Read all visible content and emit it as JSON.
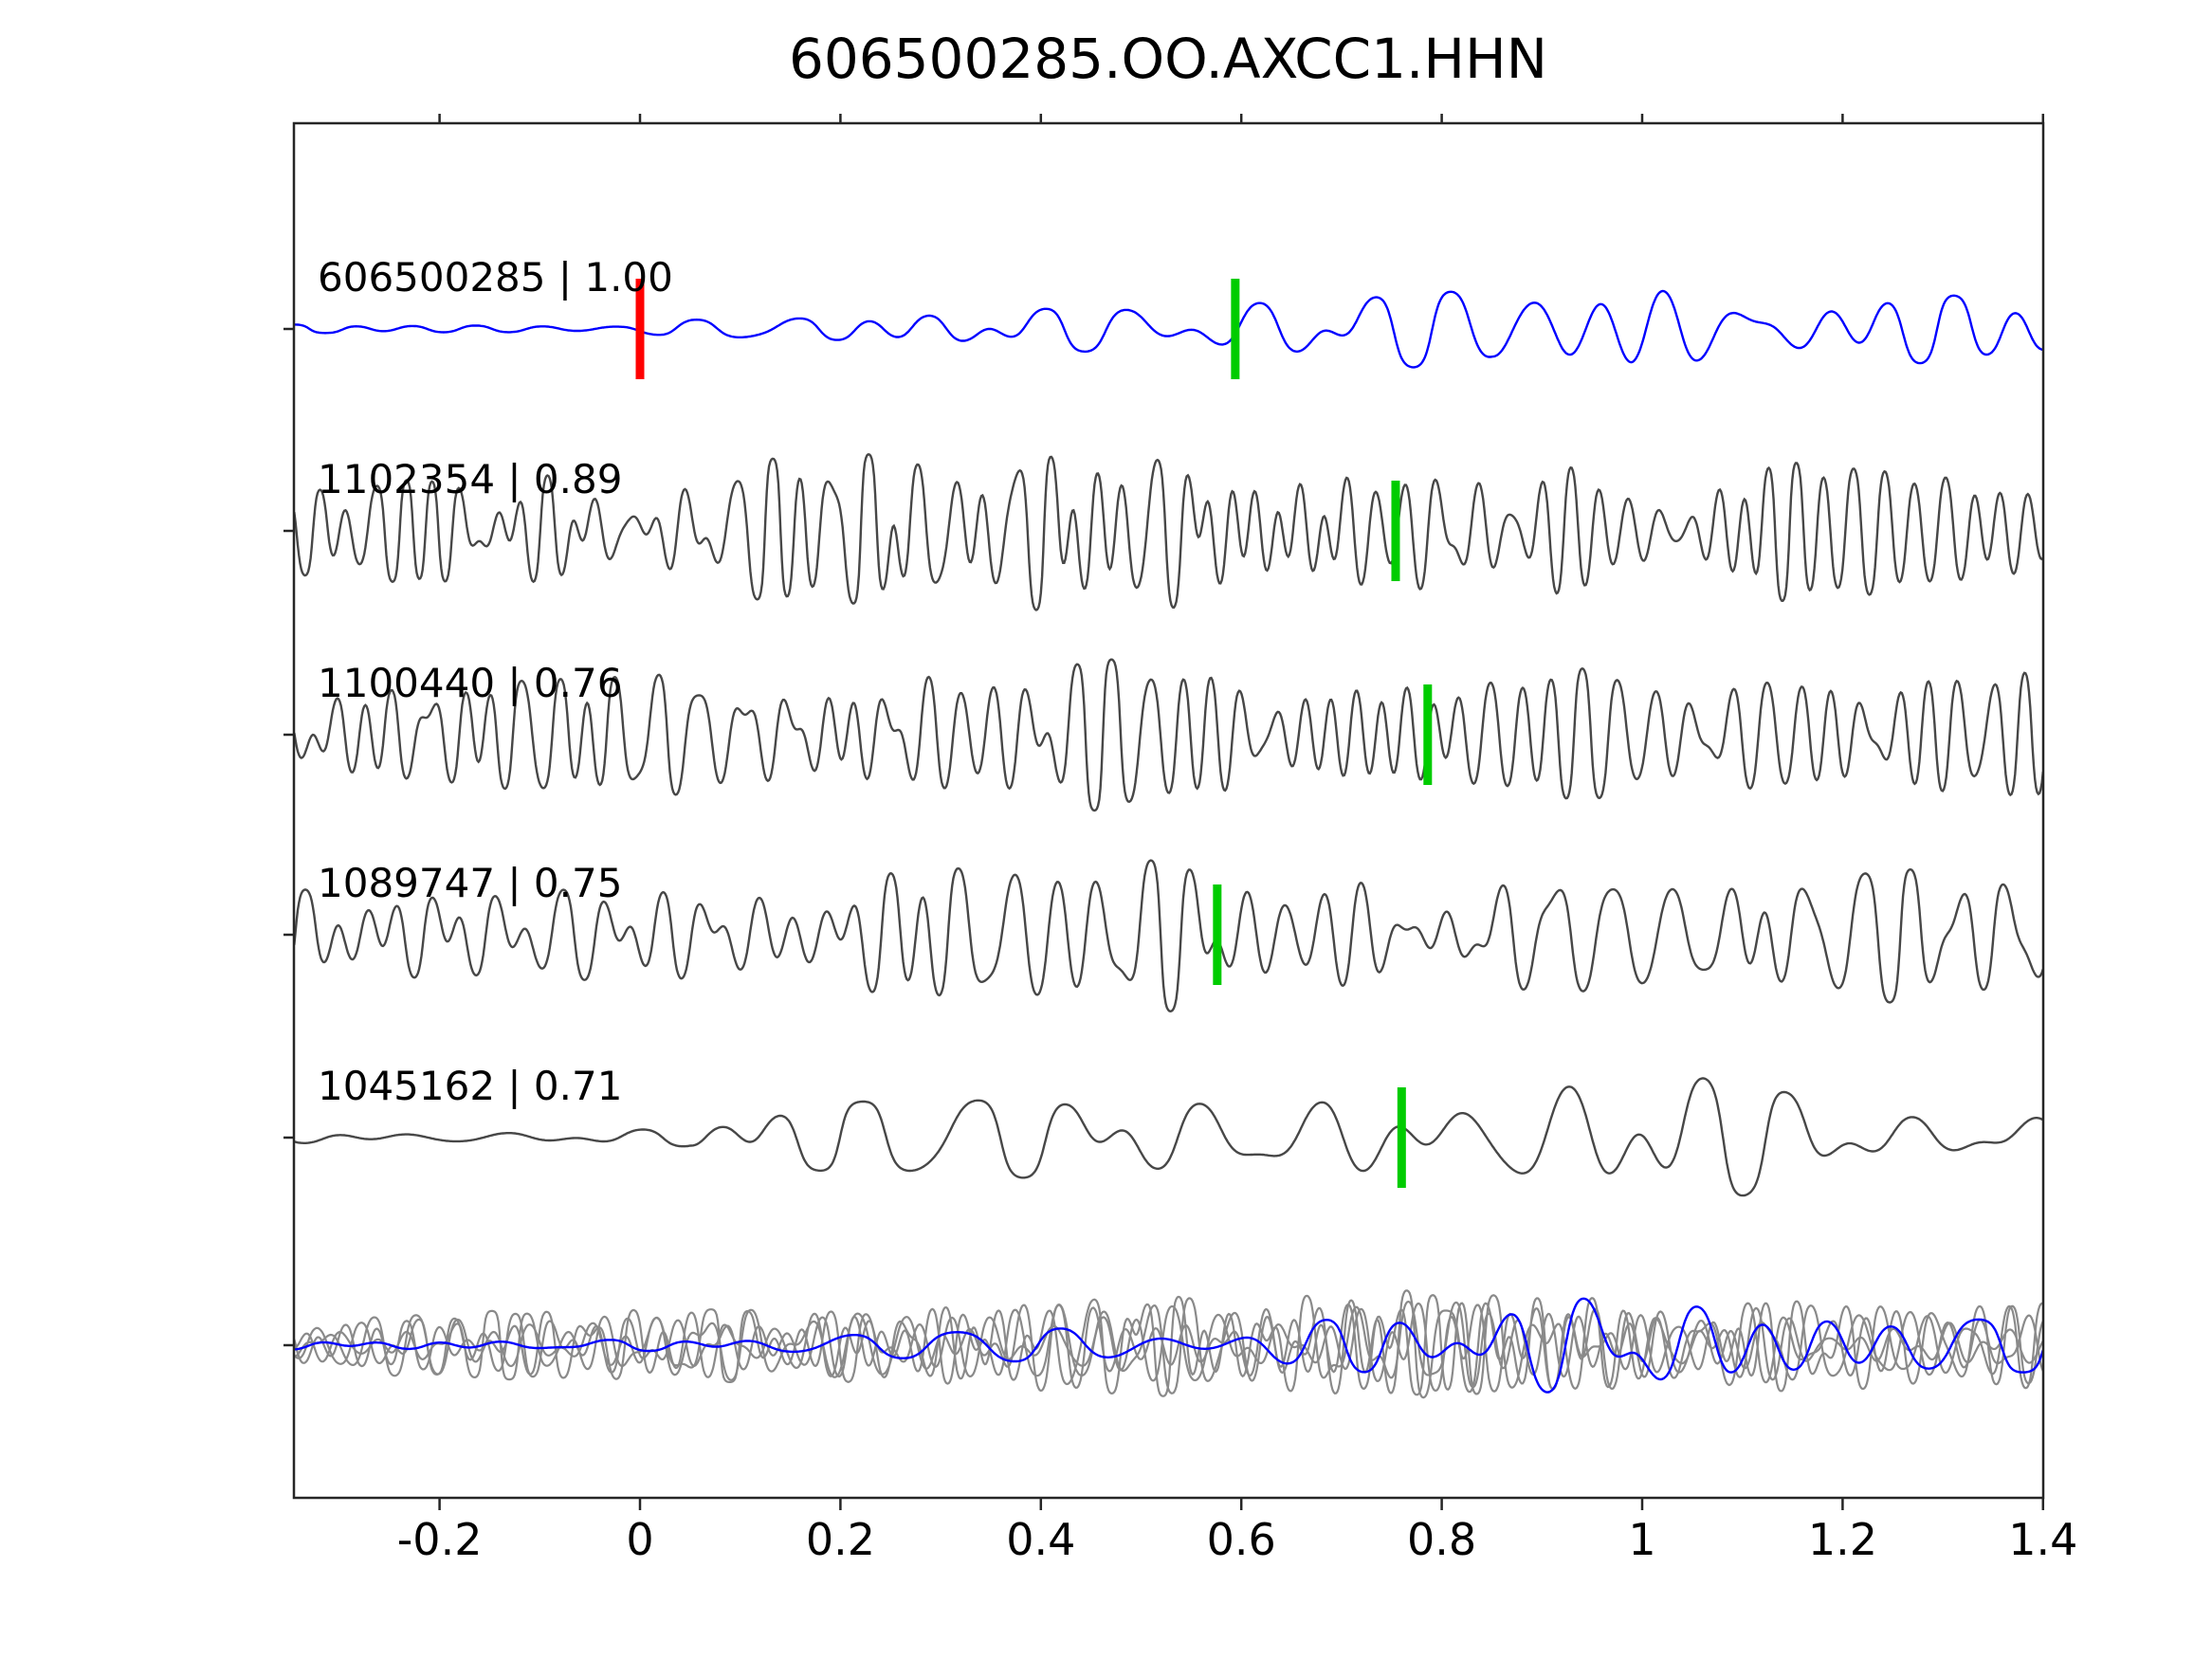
{
  "chart_data": {
    "type": "line",
    "title": "606500285.OO.AXCC1.HHN",
    "xlabel": "",
    "ylabel": "",
    "xlim": [
      -0.345,
      1.4
    ],
    "grid": false,
    "legend": null,
    "x_ticks": [
      -0.2,
      0,
      0.2,
      0.4,
      0.6,
      0.8,
      1,
      1.2,
      1.4
    ],
    "x_tick_labels": [
      "-0.2",
      "0",
      "0.2",
      "0.4",
      "0.6",
      "0.8",
      "1",
      "1.2",
      "1.4"
    ],
    "colors": {
      "template_trace": "#0000ff",
      "detection_trace": "#474747",
      "overlay_trace": "#8a8a8a",
      "pick_marker": "#00cc00",
      "origin_marker": "#ff0000",
      "axis": "#262626",
      "text": "#000000"
    },
    "label_format": "event_id | correlation",
    "traces": [
      {
        "label": "606500285 | 1.00",
        "event_id": "606500285",
        "correlation": "1.00",
        "role": "template",
        "markers": [
          {
            "type": "origin",
            "x": 0.0
          },
          {
            "type": "pick",
            "x": 0.594
          }
        ],
        "render": {
          "seed": 101,
          "freq": [
            8,
            18
          ],
          "env": [
            [
              -0.345,
              5
            ],
            [
              -0.02,
              5
            ],
            [
              0.05,
              12
            ],
            [
              0.2,
              16
            ],
            [
              0.35,
              25
            ],
            [
              0.5,
              30
            ],
            [
              0.62,
              38
            ],
            [
              0.75,
              45
            ],
            [
              0.85,
              50
            ],
            [
              0.92,
              95
            ],
            [
              0.99,
              88
            ],
            [
              1.08,
              50
            ],
            [
              1.25,
              45
            ],
            [
              1.4,
              35
            ]
          ]
        }
      },
      {
        "label": "1102354 | 0.89",
        "event_id": "1102354",
        "correlation": "0.89",
        "role": "detection",
        "markers": [
          {
            "type": "pick",
            "x": 0.754
          }
        ],
        "render": {
          "seed": 202,
          "freq": [
            18,
            45
          ],
          "env": [
            [
              -0.345,
              55
            ],
            [
              -0.1,
              70
            ],
            [
              0.1,
              80
            ],
            [
              0.3,
              90
            ],
            [
              0.5,
              95
            ],
            [
              0.7,
              95
            ],
            [
              0.9,
              90
            ],
            [
              1.1,
              85
            ],
            [
              1.4,
              80
            ]
          ]
        }
      },
      {
        "label": "1100440 | 0.76",
        "event_id": "1100440",
        "correlation": "0.76",
        "role": "detection",
        "markers": [
          {
            "type": "pick",
            "x": 0.786
          }
        ],
        "render": {
          "seed": 303,
          "freq": [
            18,
            42
          ],
          "env": [
            [
              -0.345,
              60
            ],
            [
              0,
              75
            ],
            [
              0.3,
              85
            ],
            [
              0.6,
              85
            ],
            [
              0.9,
              80
            ],
            [
              1.2,
              80
            ],
            [
              1.4,
              85
            ]
          ]
        }
      },
      {
        "label": "1089747 | 0.75",
        "event_id": "1089747",
        "correlation": "0.75",
        "role": "detection",
        "markers": [
          {
            "type": "pick",
            "x": 0.576
          }
        ],
        "render": {
          "seed": 404,
          "freq": [
            14,
            35
          ],
          "env": [
            [
              -0.345,
              55
            ],
            [
              0,
              60
            ],
            [
              0.2,
              75
            ],
            [
              0.4,
              90
            ],
            [
              0.6,
              85
            ],
            [
              0.8,
              80
            ],
            [
              1.0,
              75
            ],
            [
              1.2,
              80
            ],
            [
              1.4,
              70
            ]
          ]
        }
      },
      {
        "label": "1045162 | 0.71",
        "event_id": "1045162",
        "correlation": "0.71",
        "role": "detection",
        "markers": [
          {
            "type": "pick",
            "x": 0.76
          }
        ],
        "render": {
          "seed": 505,
          "freq": [
            8,
            16
          ],
          "env": [
            [
              -0.345,
              10
            ],
            [
              0.05,
              12
            ],
            [
              0.12,
              35
            ],
            [
              0.3,
              45
            ],
            [
              0.5,
              50
            ],
            [
              0.65,
              55
            ],
            [
              0.78,
              85
            ],
            [
              0.9,
              100
            ],
            [
              1.05,
              80
            ],
            [
              1.2,
              45
            ],
            [
              1.3,
              35
            ],
            [
              1.4,
              40
            ]
          ]
        }
      }
    ],
    "overlay": {
      "description": "all traces overlaid",
      "gray_traces": [
        {
          "seed": 606,
          "freq": [
            18,
            40
          ],
          "env": [
            [
              -0.345,
              35
            ],
            [
              0.1,
              45
            ],
            [
              0.4,
              55
            ],
            [
              0.7,
              60
            ],
            [
              1.0,
              55
            ],
            [
              1.4,
              50
            ]
          ]
        },
        {
          "seed": 707,
          "freq": [
            16,
            38
          ],
          "env": [
            [
              -0.345,
              30
            ],
            [
              0.1,
              45
            ],
            [
              0.4,
              60
            ],
            [
              0.7,
              55
            ],
            [
              1.0,
              60
            ],
            [
              1.4,
              45
            ]
          ]
        },
        {
          "seed": 808,
          "freq": [
            20,
            42
          ],
          "env": [
            [
              -0.345,
              35
            ],
            [
              0.1,
              40
            ],
            [
              0.4,
              55
            ],
            [
              0.7,
              65
            ],
            [
              1.0,
              55
            ],
            [
              1.4,
              55
            ]
          ]
        },
        {
          "seed": 909,
          "freq": [
            14,
            36
          ],
          "env": [
            [
              -0.345,
              30
            ],
            [
              0.1,
              40
            ],
            [
              0.4,
              50
            ],
            [
              0.7,
              55
            ],
            [
              1.0,
              60
            ],
            [
              1.4,
              50
            ]
          ]
        }
      ],
      "template_trace": {
        "seed": 1010,
        "freq": [
          8,
          18
        ],
        "env": [
          [
            -0.345,
            6
          ],
          [
            0.05,
            8
          ],
          [
            0.2,
            15
          ],
          [
            0.4,
            22
          ],
          [
            0.6,
            28
          ],
          [
            0.8,
            40
          ],
          [
            0.93,
            70
          ],
          [
            1.0,
            70
          ],
          [
            1.1,
            45
          ],
          [
            1.25,
            35
          ],
          [
            1.4,
            30
          ]
        ]
      }
    }
  }
}
